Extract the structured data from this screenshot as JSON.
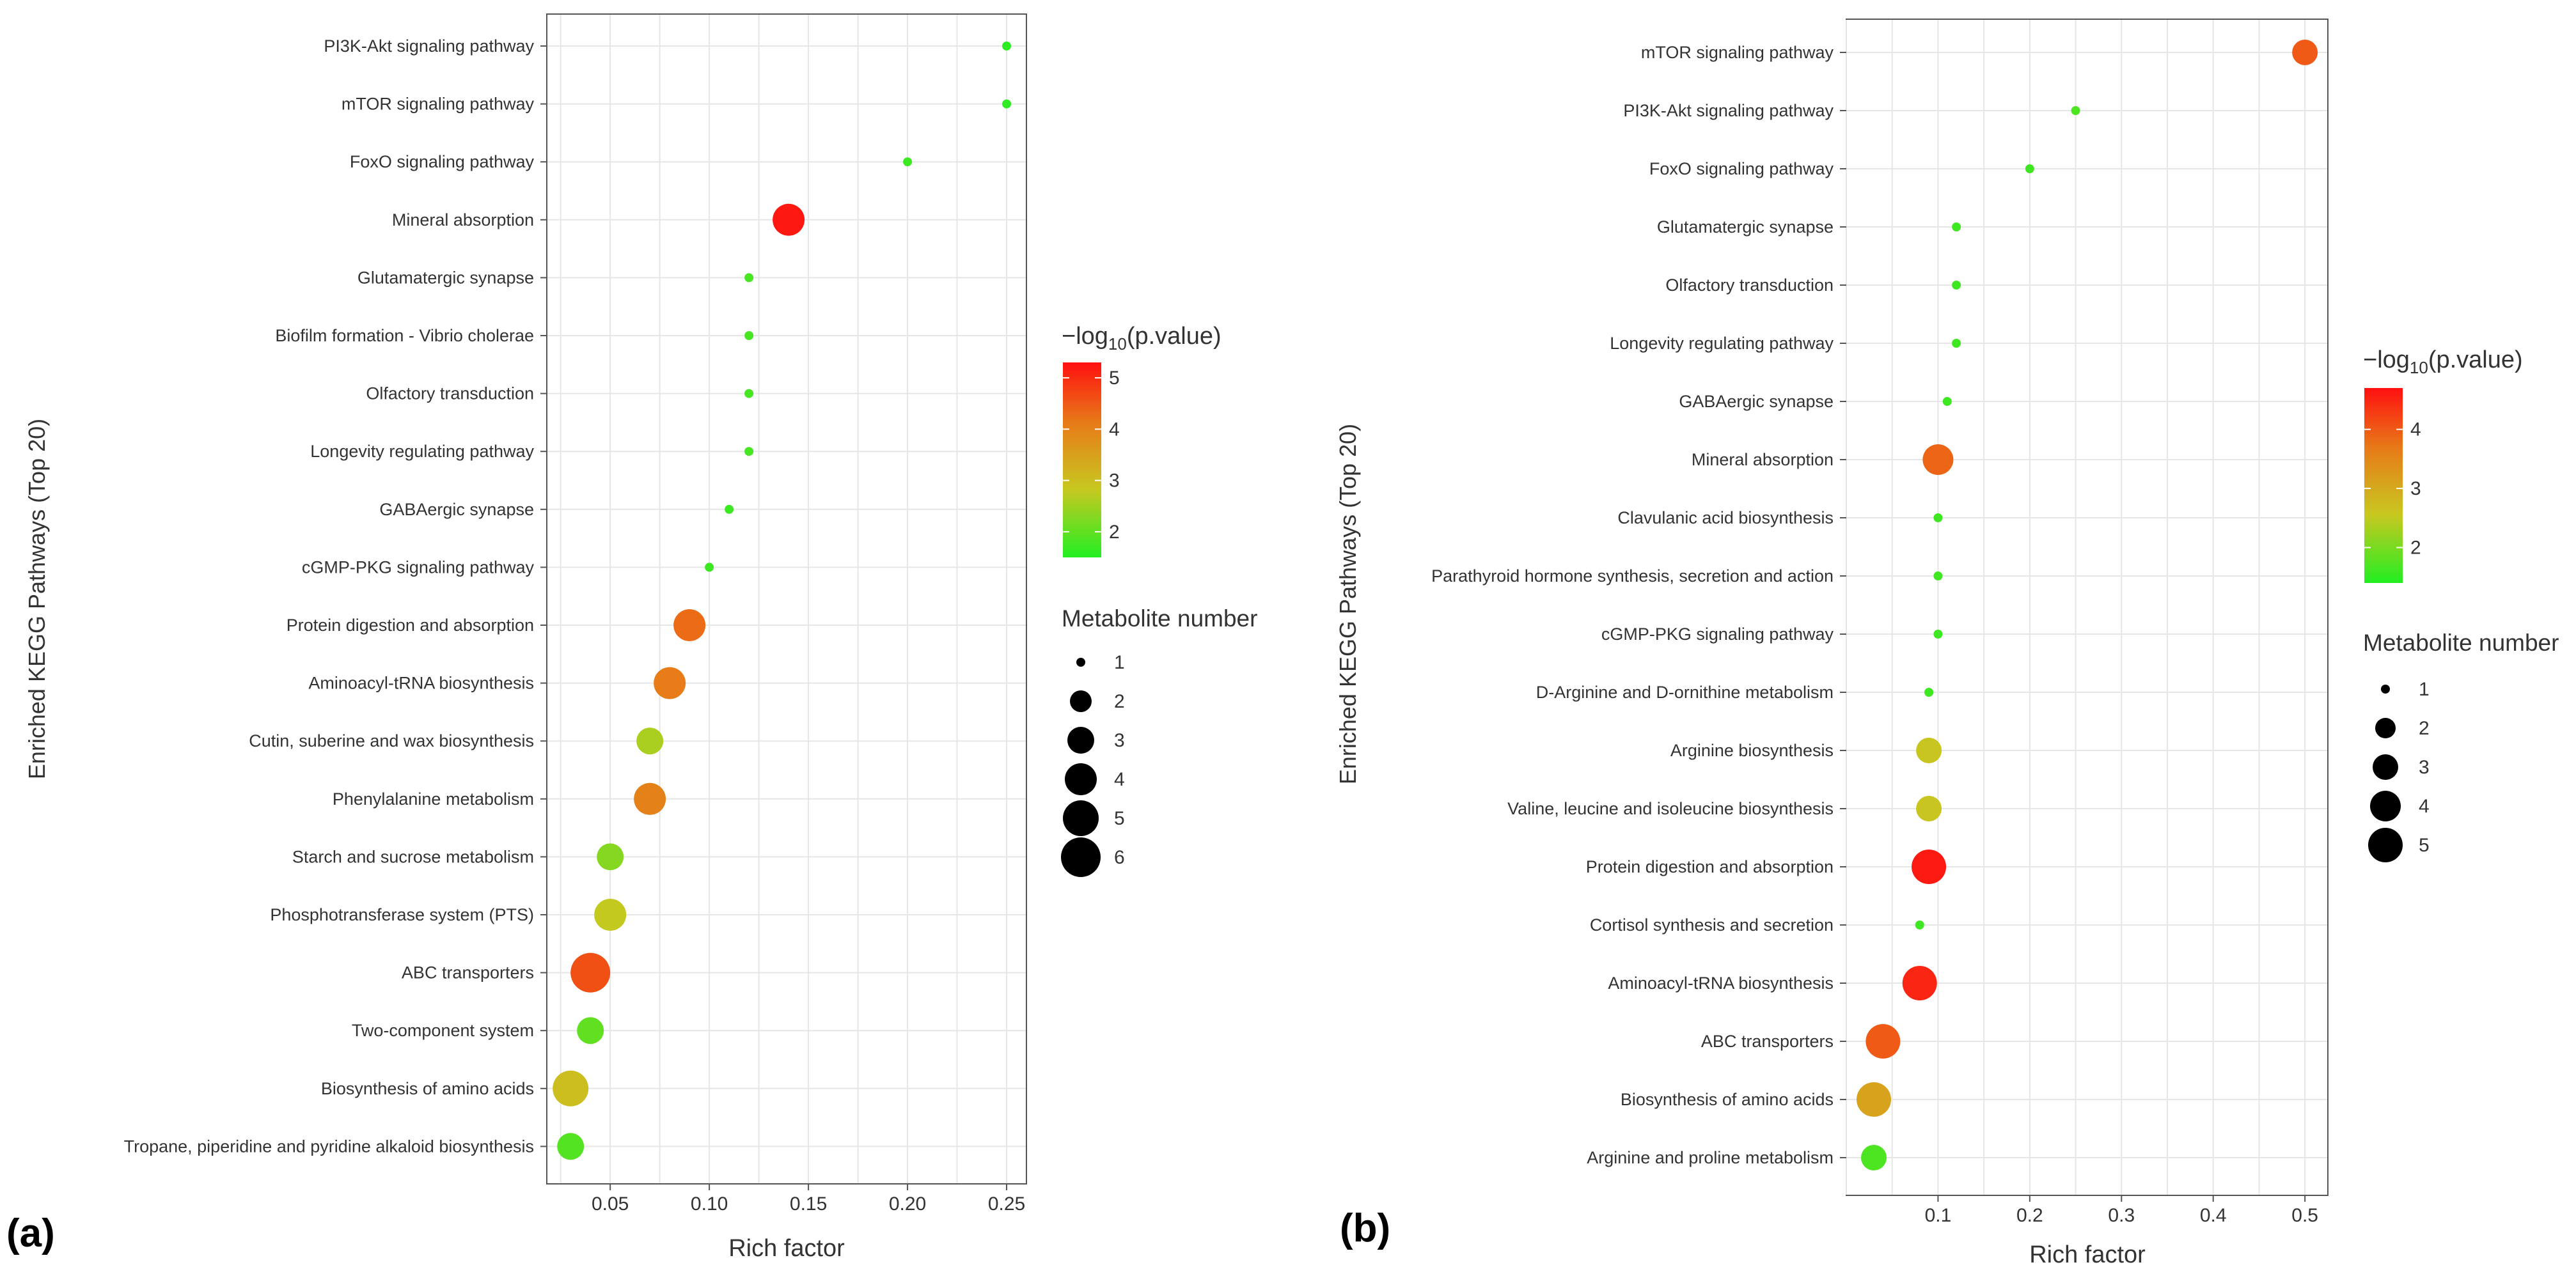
{
  "panels": [
    {
      "label": "(a)",
      "legend_color": {
        "title_prefix": "−log",
        "title_sub": "10",
        "title_suffix": "(p.value)",
        "ticks": [
          2,
          3,
          4,
          5
        ]
      },
      "legend_size": {
        "title": "Metabolite number",
        "entries": [
          "1",
          "2",
          "3",
          "4",
          "5",
          "6"
        ]
      }
    },
    {
      "label": "(b)",
      "legend_color": {
        "title_prefix": "−log",
        "title_sub": "10",
        "title_suffix": "(p.value)",
        "ticks": [
          2,
          3,
          4
        ]
      },
      "legend_size": {
        "title": "Metabolite number",
        "entries": [
          "1",
          "2",
          "3",
          "4",
          "5"
        ]
      }
    }
  ],
  "colors": {
    "low": "#22ee22",
    "mid": "#c8c820",
    "midhigh": "#e87818",
    "high": "#ff1010",
    "grid": "#e6e6e6",
    "frame": "#555555"
  },
  "chart_data": [
    {
      "type": "scatter",
      "xlabel": "Rich factor",
      "ylabel": "Enriched KEGG Pathways (Top 20)",
      "xlim": [
        0.018,
        0.26
      ],
      "xticks": [
        "0.05",
        "0.10",
        "0.15",
        "0.20",
        "0.25"
      ],
      "xtick_values": [
        0.05,
        0.1,
        0.15,
        0.2,
        0.25
      ],
      "color_range": [
        1.5,
        5.3
      ],
      "points": [
        {
          "name": "PI3K-Akt signaling pathway",
          "rich_factor": 0.25,
          "neg_log10_p": 1.6,
          "metabolites": 1
        },
        {
          "name": "mTOR signaling pathway",
          "rich_factor": 0.25,
          "neg_log10_p": 1.6,
          "metabolites": 1
        },
        {
          "name": "FoxO signaling pathway",
          "rich_factor": 0.2,
          "neg_log10_p": 1.7,
          "metabolites": 1
        },
        {
          "name": "Mineral absorption",
          "rich_factor": 0.14,
          "neg_log10_p": 5.2,
          "metabolites": 4
        },
        {
          "name": "Glutamatergic synapse",
          "rich_factor": 0.12,
          "neg_log10_p": 1.8,
          "metabolites": 1
        },
        {
          "name": "Biofilm formation - Vibrio cholerae",
          "rich_factor": 0.12,
          "neg_log10_p": 1.8,
          "metabolites": 1
        },
        {
          "name": "Olfactory transduction",
          "rich_factor": 0.12,
          "neg_log10_p": 1.8,
          "metabolites": 1
        },
        {
          "name": "Longevity regulating pathway",
          "rich_factor": 0.12,
          "neg_log10_p": 1.8,
          "metabolites": 1
        },
        {
          "name": "GABAergic synapse",
          "rich_factor": 0.11,
          "neg_log10_p": 1.7,
          "metabolites": 1
        },
        {
          "name": "cGMP-PKG signaling pathway",
          "rich_factor": 0.1,
          "neg_log10_p": 1.7,
          "metabolites": 1
        },
        {
          "name": "Protein digestion and absorption",
          "rich_factor": 0.09,
          "neg_log10_p": 4.3,
          "metabolites": 4
        },
        {
          "name": "Aminoacyl-tRNA biosynthesis",
          "rich_factor": 0.08,
          "neg_log10_p": 4.1,
          "metabolites": 4
        },
        {
          "name": "Cutin, suberine and wax biosynthesis",
          "rich_factor": 0.07,
          "neg_log10_p": 2.6,
          "metabolites": 3
        },
        {
          "name": "Phenylalanine metabolism",
          "rich_factor": 0.07,
          "neg_log10_p": 4.0,
          "metabolites": 4
        },
        {
          "name": "Starch and sucrose metabolism",
          "rich_factor": 0.05,
          "neg_log10_p": 2.3,
          "metabolites": 3
        },
        {
          "name": "Phosphotransferase system (PTS)",
          "rich_factor": 0.05,
          "neg_log10_p": 2.8,
          "metabolites": 4
        },
        {
          "name": "ABC transporters",
          "rich_factor": 0.04,
          "neg_log10_p": 4.6,
          "metabolites": 6
        },
        {
          "name": "Two-component system",
          "rich_factor": 0.04,
          "neg_log10_p": 2.0,
          "metabolites": 3
        },
        {
          "name": "Biosynthesis of amino acids",
          "rich_factor": 0.03,
          "neg_log10_p": 3.0,
          "metabolites": 5
        },
        {
          "name": "Tropane, piperidine and pyridine alkaloid biosynthesis",
          "rich_factor": 0.03,
          "neg_log10_p": 1.9,
          "metabolites": 3
        }
      ]
    },
    {
      "type": "scatter",
      "xlabel": "Rich factor",
      "ylabel": "Enriched KEGG Pathways (Top 20)",
      "xlim": [
        0.0,
        0.525
      ],
      "xticks": [
        "0.1",
        "0.2",
        "0.3",
        "0.4",
        "0.5"
      ],
      "xtick_values": [
        0.1,
        0.2,
        0.3,
        0.4,
        0.5
      ],
      "color_range": [
        1.4,
        4.7
      ],
      "points": [
        {
          "name": "mTOR signaling pathway",
          "rich_factor": 0.5,
          "neg_log10_p": 4.0,
          "metabolites": 3
        },
        {
          "name": "PI3K-Akt signaling pathway",
          "rich_factor": 0.25,
          "neg_log10_p": 1.7,
          "metabolites": 1
        },
        {
          "name": "FoxO signaling pathway",
          "rich_factor": 0.2,
          "neg_log10_p": 1.6,
          "metabolites": 1
        },
        {
          "name": "Glutamatergic synapse",
          "rich_factor": 0.12,
          "neg_log10_p": 1.6,
          "metabolites": 1
        },
        {
          "name": "Olfactory transduction",
          "rich_factor": 0.12,
          "neg_log10_p": 1.6,
          "metabolites": 1
        },
        {
          "name": "Longevity regulating pathway",
          "rich_factor": 0.12,
          "neg_log10_p": 1.6,
          "metabolites": 1
        },
        {
          "name": "GABAergic synapse",
          "rich_factor": 0.11,
          "neg_log10_p": 1.6,
          "metabolites": 1
        },
        {
          "name": "Mineral absorption",
          "rich_factor": 0.1,
          "neg_log10_p": 3.9,
          "metabolites": 4
        },
        {
          "name": "Clavulanic acid biosynthesis",
          "rich_factor": 0.1,
          "neg_log10_p": 1.6,
          "metabolites": 1
        },
        {
          "name": "Parathyroid hormone synthesis, secretion and action",
          "rich_factor": 0.1,
          "neg_log10_p": 1.6,
          "metabolites": 1
        },
        {
          "name": "cGMP-PKG signaling pathway",
          "rich_factor": 0.1,
          "neg_log10_p": 1.6,
          "metabolites": 1
        },
        {
          "name": "D-Arginine and D-ornithine metabolism",
          "rich_factor": 0.09,
          "neg_log10_p": 1.6,
          "metabolites": 1
        },
        {
          "name": "Arginine biosynthesis",
          "rich_factor": 0.09,
          "neg_log10_p": 2.6,
          "metabolites": 3
        },
        {
          "name": "Valine, leucine and isoleucine biosynthesis",
          "rich_factor": 0.09,
          "neg_log10_p": 2.6,
          "metabolites": 3
        },
        {
          "name": "Protein digestion and absorption",
          "rich_factor": 0.09,
          "neg_log10_p": 4.6,
          "metabolites": 5
        },
        {
          "name": "Cortisol synthesis and secretion",
          "rich_factor": 0.08,
          "neg_log10_p": 1.6,
          "metabolites": 1
        },
        {
          "name": "Aminoacyl-tRNA biosynthesis",
          "rich_factor": 0.08,
          "neg_log10_p": 4.5,
          "metabolites": 5
        },
        {
          "name": "ABC transporters",
          "rich_factor": 0.04,
          "neg_log10_p": 4.0,
          "metabolites": 5
        },
        {
          "name": "Biosynthesis of amino acids",
          "rich_factor": 0.03,
          "neg_log10_p": 3.1,
          "metabolites": 5
        },
        {
          "name": "Arginine and proline metabolism",
          "rich_factor": 0.03,
          "neg_log10_p": 1.7,
          "metabolites": 3
        }
      ]
    }
  ]
}
